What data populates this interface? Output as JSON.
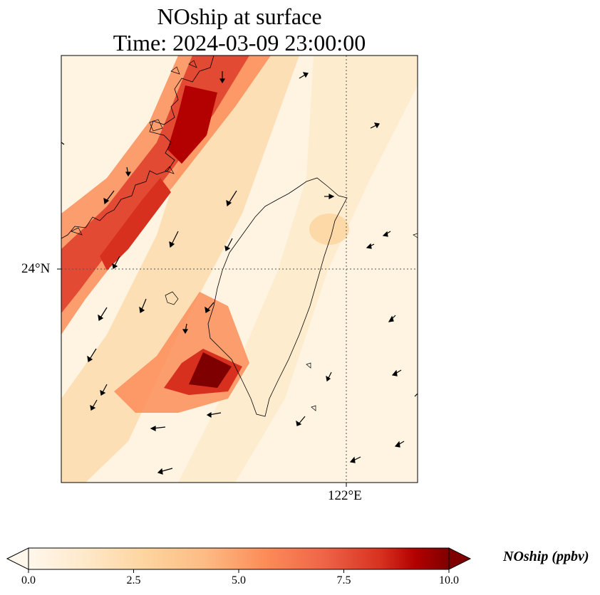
{
  "title": {
    "line1": "NOship at surface",
    "line2": "Time: 2024-03-09 23:00:00"
  },
  "axes": {
    "lat_label": "24°N",
    "lon_label": "122°E"
  },
  "colorbar": {
    "label": "NOship (ppbv)",
    "ticks": [
      "0.0",
      "2.5",
      "5.0",
      "7.5",
      "10.0"
    ],
    "min": 0,
    "max": 10,
    "colormap": "OrRd",
    "extend": "both"
  },
  "colors": {
    "low": "#fff7ec",
    "mid": "#fdbb84",
    "high": "#d7301f",
    "max": "#7f0000"
  }
}
